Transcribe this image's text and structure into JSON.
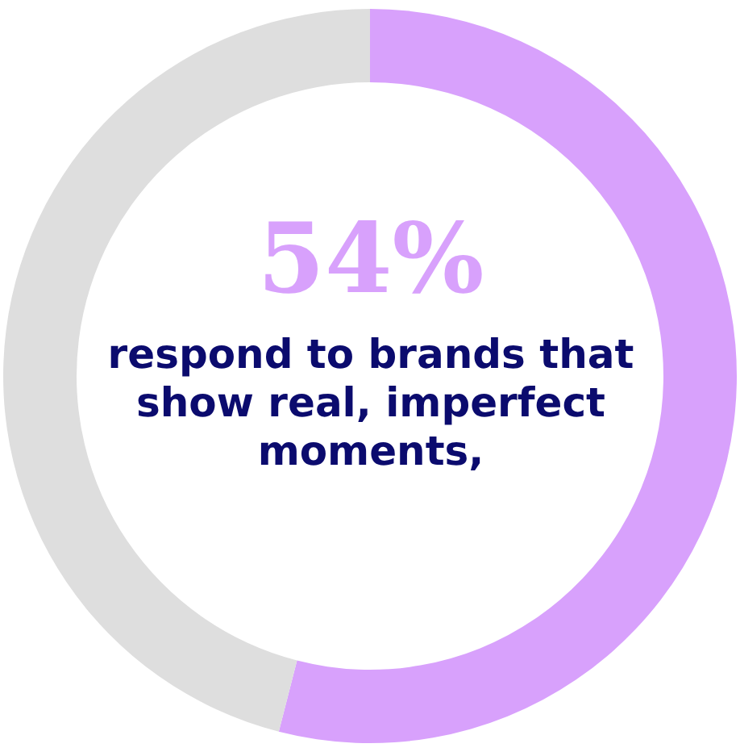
{
  "chart_data": {
    "type": "donut",
    "categories": [
      null,
      null
    ],
    "values": [
      54,
      46
    ],
    "colors": [
      "#d8a1fc",
      "#dedede"
    ],
    "value_labels": [
      "54%",
      null
    ],
    "annotations": [
      "respond to brands that show real, imperfect moments,"
    ],
    "legend": false
  }
}
